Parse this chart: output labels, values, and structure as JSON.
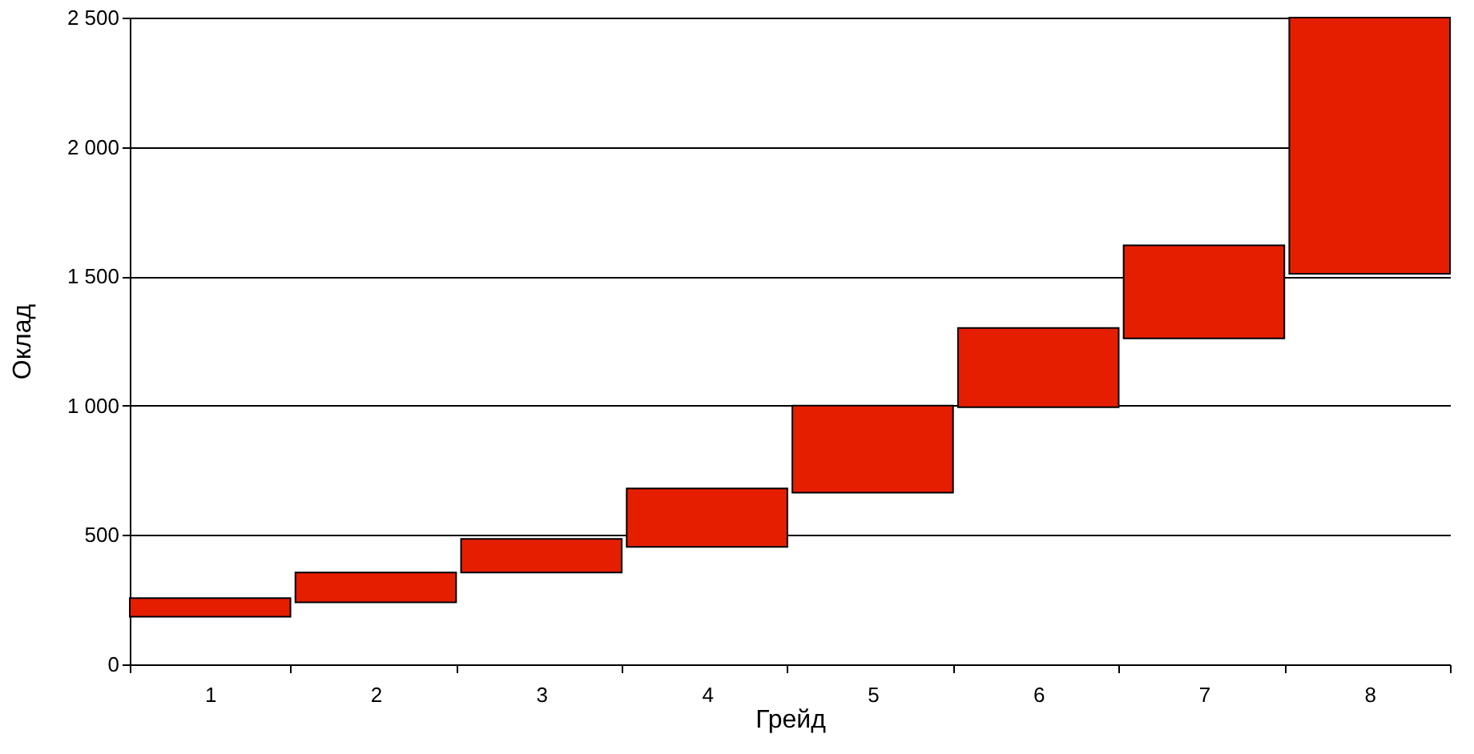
{
  "chart_data": {
    "type": "bar",
    "xlabel": "Грейд",
    "ylabel": "Оклад",
    "categories": [
      "1",
      "2",
      "3",
      "4",
      "5",
      "6",
      "7",
      "8"
    ],
    "base": [
      184,
      240,
      355,
      454,
      664,
      994,
      1260,
      1510
    ],
    "values": [
      72,
      115,
      130,
      226,
      336,
      306,
      360,
      990
    ],
    "color": "#e61e00",
    "ylim": [
      0,
      2500
    ],
    "yticks": [
      0,
      500,
      {
        "value": 1000,
        "label": "1 000"
      },
      {
        "value": 1500,
        "label": "1 500"
      },
      {
        "value": 2000,
        "label": "2 000"
      },
      {
        "value": 2500,
        "label": "2 500"
      }
    ],
    "grid": "y"
  }
}
